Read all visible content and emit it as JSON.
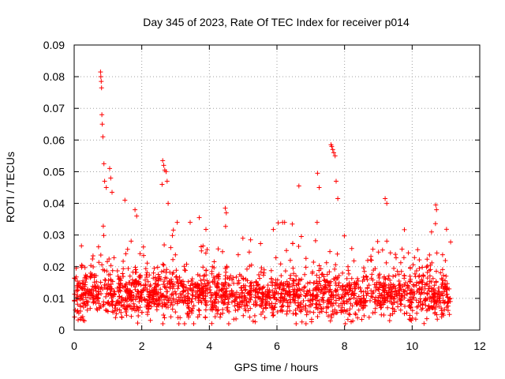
{
  "chart_data": {
    "type": "scatter",
    "title": "Day 345 of 2023, Rate Of TEC Index for receiver p014",
    "xlabel": "GPS time / hours",
    "ylabel": "ROTI / TECUs",
    "xlim": [
      0,
      12
    ],
    "ylim": [
      0,
      0.09
    ],
    "xticks": [
      0,
      2,
      4,
      6,
      8,
      10,
      12
    ],
    "xtick_labels": [
      "0",
      "2",
      "4",
      "6",
      "8",
      "10",
      "12"
    ],
    "yticks": [
      0,
      0.01,
      0.02,
      0.03,
      0.04,
      0.05,
      0.06,
      0.07,
      0.08,
      0.09
    ],
    "ytick_labels": [
      "0",
      "0.01",
      "0.02",
      "0.03",
      "0.04",
      "0.05",
      "0.06",
      "0.07",
      "0.08",
      "0.09"
    ],
    "grid": true,
    "marker": "+",
    "color": "#ff0000",
    "x_range": [
      0.0,
      11.15
    ],
    "baseline_mean": 0.011,
    "typical_range": [
      0.004,
      0.025
    ],
    "series": [
      {
        "name": "p014 ROTI",
        "x": [
          0.78,
          0.79,
          0.8,
          0.81,
          0.82,
          0.83,
          0.85,
          0.88,
          0.9,
          0.95,
          1.05,
          1.08,
          1.12,
          1.5,
          1.8,
          1.85,
          2.62,
          2.65,
          2.68,
          2.72,
          2.75,
          2.78,
          2.6,
          3.7,
          4.47,
          4.5,
          6.65,
          7.2,
          7.25,
          7.6,
          7.62,
          7.65,
          7.68,
          7.72,
          7.75,
          7.8,
          9.2,
          9.25,
          10.7,
          10.72
        ],
        "y": [
          0.0815,
          0.08,
          0.0785,
          0.0765,
          0.068,
          0.065,
          0.061,
          0.0525,
          0.047,
          0.045,
          0.051,
          0.048,
          0.0435,
          0.041,
          0.038,
          0.036,
          0.0535,
          0.052,
          0.0505,
          0.05,
          0.047,
          0.04,
          0.046,
          0.0355,
          0.0385,
          0.037,
          0.0455,
          0.0495,
          0.045,
          0.0585,
          0.058,
          0.057,
          0.056,
          0.055,
          0.047,
          0.0415,
          0.0415,
          0.04,
          0.0395,
          0.038
        ]
      }
    ]
  }
}
